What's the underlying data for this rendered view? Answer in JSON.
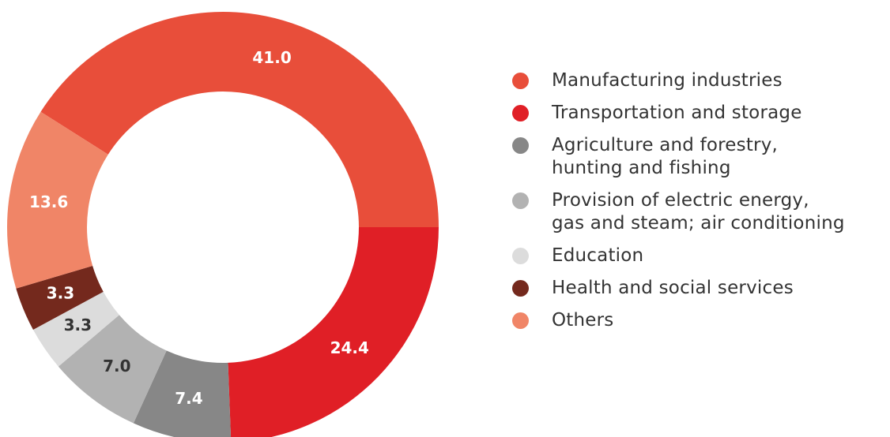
{
  "chart_data": {
    "type": "donut",
    "categories": [
      "Manufacturing industries",
      "Transportation and storage",
      "Agriculture and forestry,\nhunting and fishing",
      "Provision of electric energy,\ngas and steam; air conditioning",
      "Education",
      "Health and social services",
      "Others"
    ],
    "values": [
      41.0,
      24.4,
      7.4,
      7.0,
      3.3,
      3.3,
      13.6
    ],
    "value_labels": [
      "41.0",
      "24.4",
      "7.4",
      "7.0",
      "3.3",
      "3.3",
      "13.6"
    ],
    "colors": [
      "#e84e3a",
      "#e01f26",
      "#878787",
      "#b2b2b2",
      "#dcdcdc",
      "#74291d",
      "#f08567"
    ],
    "legend": "right"
  }
}
